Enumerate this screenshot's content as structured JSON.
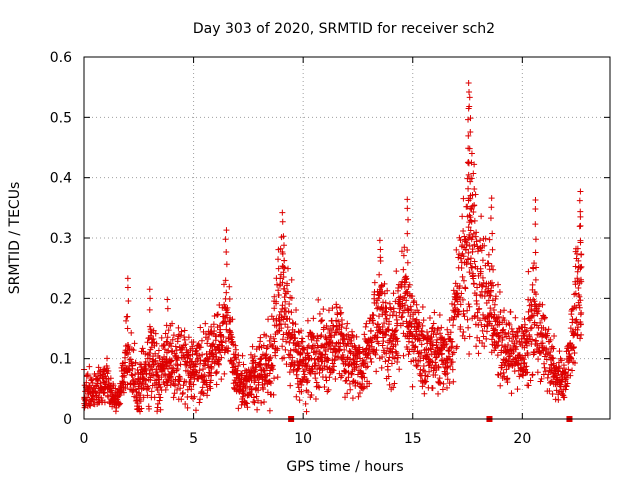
{
  "chart_data": {
    "type": "scatter",
    "title": "Day 303 of 2020, SRMTID for receiver sch2",
    "xlabel": "GPS time / hours",
    "ylabel": "SRMTID / TECUs",
    "xlim": [
      0,
      24
    ],
    "ylim": [
      0,
      0.6
    ],
    "xticks": [
      0,
      5,
      10,
      15,
      20
    ],
    "xtick_labels": [
      "0",
      "5",
      "10",
      "15",
      "20"
    ],
    "yticks": [
      0,
      0.1,
      0.2,
      0.3,
      0.4,
      0.5,
      0.6
    ],
    "ytick_labels": [
      "0",
      "0.1",
      "0.2",
      "0.3",
      "0.4",
      "0.5",
      "0.6"
    ],
    "grid": true,
    "marker": "+",
    "color": "#dd0000",
    "gap_markers_x": [
      9.45,
      18.5,
      22.15
    ],
    "series": [
      {
        "name": "SRMTID",
        "envelope": [
          [
            0.0,
            0.04,
            0.03
          ],
          [
            0.5,
            0.05,
            0.03
          ],
          [
            1.0,
            0.06,
            0.03
          ],
          [
            1.5,
            0.03,
            0.02
          ],
          [
            2.0,
            0.1,
            0.06
          ],
          [
            2.5,
            0.05,
            0.04
          ],
          [
            3.0,
            0.09,
            0.07
          ],
          [
            3.5,
            0.08,
            0.05
          ],
          [
            4.0,
            0.1,
            0.07
          ],
          [
            4.5,
            0.09,
            0.06
          ],
          [
            5.0,
            0.08,
            0.05
          ],
          [
            5.5,
            0.09,
            0.05
          ],
          [
            6.0,
            0.11,
            0.05
          ],
          [
            6.5,
            0.16,
            0.07
          ],
          [
            7.0,
            0.06,
            0.03
          ],
          [
            7.5,
            0.06,
            0.04
          ],
          [
            8.0,
            0.08,
            0.05
          ],
          [
            8.5,
            0.09,
            0.05
          ],
          [
            9.0,
            0.2,
            0.1
          ],
          [
            9.5,
            0.12,
            0.07
          ],
          [
            10.0,
            0.08,
            0.05
          ],
          [
            10.5,
            0.12,
            0.06
          ],
          [
            11.0,
            0.11,
            0.05
          ],
          [
            11.5,
            0.14,
            0.06
          ],
          [
            12.0,
            0.1,
            0.05
          ],
          [
            12.5,
            0.08,
            0.04
          ],
          [
            13.0,
            0.11,
            0.05
          ],
          [
            13.5,
            0.18,
            0.08
          ],
          [
            14.0,
            0.12,
            0.06
          ],
          [
            14.5,
            0.2,
            0.08
          ],
          [
            15.0,
            0.14,
            0.06
          ],
          [
            15.5,
            0.11,
            0.05
          ],
          [
            16.0,
            0.11,
            0.05
          ],
          [
            16.5,
            0.1,
            0.05
          ],
          [
            17.0,
            0.18,
            0.08
          ],
          [
            17.5,
            0.3,
            0.15
          ],
          [
            18.0,
            0.22,
            0.1
          ],
          [
            18.5,
            0.2,
            0.08
          ],
          [
            19.0,
            0.12,
            0.06
          ],
          [
            19.5,
            0.11,
            0.05
          ],
          [
            20.0,
            0.1,
            0.05
          ],
          [
            20.5,
            0.18,
            0.08
          ],
          [
            21.0,
            0.12,
            0.06
          ],
          [
            21.5,
            0.07,
            0.04
          ],
          [
            22.0,
            0.06,
            0.03
          ],
          [
            22.5,
            0.2,
            0.08
          ],
          [
            22.7,
            0.2,
            0.08
          ]
        ],
        "peaks": [
          [
            2.0,
            0.233
          ],
          [
            3.0,
            0.215
          ],
          [
            3.8,
            0.198
          ],
          [
            6.5,
            0.313
          ],
          [
            9.05,
            0.342
          ],
          [
            9.1,
            0.303
          ],
          [
            13.5,
            0.296
          ],
          [
            14.75,
            0.364
          ],
          [
            17.55,
            0.557
          ],
          [
            17.6,
            0.533
          ],
          [
            17.7,
            0.44
          ],
          [
            17.8,
            0.422
          ],
          [
            18.6,
            0.366
          ],
          [
            20.6,
            0.363
          ],
          [
            22.65,
            0.377
          ],
          [
            22.65,
            0.335
          ]
        ]
      }
    ]
  }
}
